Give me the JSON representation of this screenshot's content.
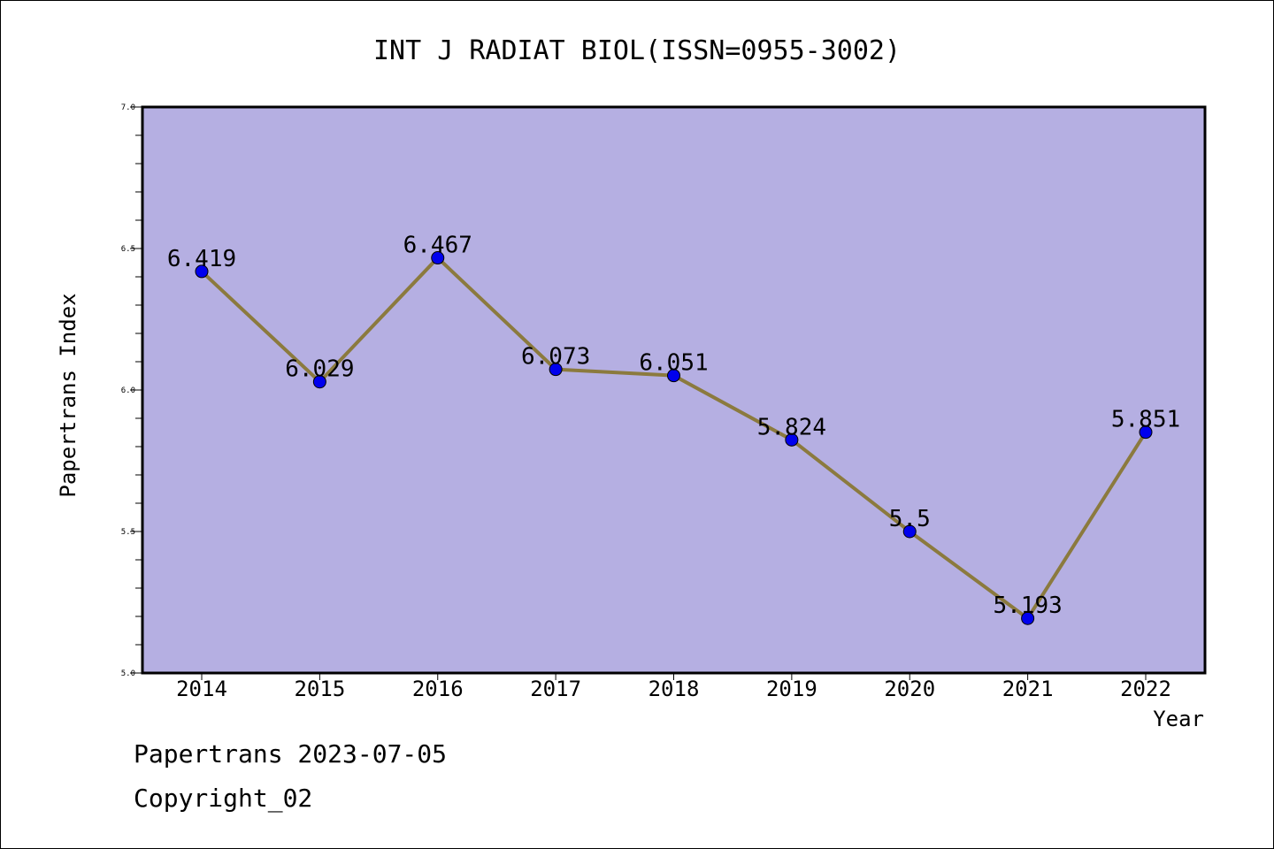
{
  "chart_data": {
    "type": "line",
    "title": "INT J RADIAT BIOL(ISSN=0955-3002)",
    "xlabel": "Year",
    "ylabel": "Papertrans Index",
    "categories": [
      "2014",
      "2015",
      "2016",
      "2017",
      "2018",
      "2019",
      "2020",
      "2021",
      "2022"
    ],
    "series": [
      {
        "values": [
          6.419,
          6.029,
          6.467,
          6.073,
          6.051,
          5.824,
          5.5,
          5.193,
          5.851
        ]
      }
    ],
    "data_labels": [
      "6.419",
      "6.029",
      "6.467",
      "6.073",
      "6.051",
      "5.824",
      "5.5",
      "5.193",
      "5.851"
    ],
    "ylim": [
      5.0,
      7.0
    ],
    "yticks": [
      "5.0",
      "5.5",
      "6.0",
      "6.5",
      "7.0"
    ],
    "y_minor_step": 0.1,
    "grid": false,
    "colors": {
      "plot_background": "#b5afe2",
      "line": "#8b7a3e",
      "marker": "#0000ee",
      "axis": "#000000"
    }
  },
  "footer": {
    "line1": "Papertrans 2023-07-05",
    "line2": "Copyright_02"
  }
}
